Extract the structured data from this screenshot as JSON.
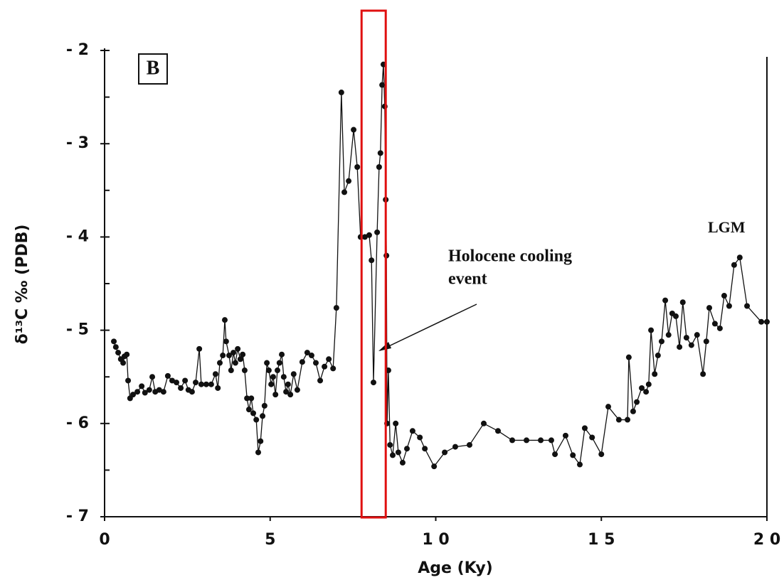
{
  "chart_data": {
    "type": "line",
    "panel_label": "B",
    "x_label": "Age (Ky)",
    "y_label": "δ¹³C ‰ (PDB)",
    "annotations": [
      "Holocene cooling",
      "event",
      "LGM"
    ],
    "highlight_xrange": [
      7.76,
      8.49
    ],
    "highlight_color": "#e01010",
    "xlim": [
      0,
      20
    ],
    "ylim": [
      -7,
      -2
    ],
    "xticks": [
      0,
      5,
      {
        "value": 10,
        "label": "1 0"
      },
      {
        "value": 15,
        "label": "1 5"
      },
      {
        "value": 20,
        "label": "2 0"
      }
    ],
    "yticks": [
      {
        "value": -2,
        "label": "- 2"
      },
      {
        "value": -3,
        "label": "- 3"
      },
      {
        "value": -4,
        "label": "- 4"
      },
      {
        "value": -5,
        "label": "- 5"
      },
      {
        "value": -6,
        "label": "- 6"
      },
      {
        "value": -7,
        "label": "- 7"
      }
    ],
    "y_minor_ticks": [
      -2.5,
      -3.5,
      -4.5,
      -5.5,
      -6.5
    ],
    "grid": false,
    "series": [
      {
        "color": "#111111",
        "x": [
          0.28,
          0.34,
          0.41,
          0.49,
          0.56,
          0.6,
          0.67,
          0.71,
          0.77,
          0.86,
          0.99,
          1.12,
          1.22,
          1.35,
          1.44,
          1.53,
          1.65,
          1.78,
          1.91,
          2.04,
          2.17,
          2.3,
          2.43,
          2.53,
          2.64,
          2.75,
          2.86,
          2.92,
          3.07,
          3.22,
          3.35,
          3.42,
          3.48,
          3.57,
          3.63,
          3.67,
          3.76,
          3.82,
          3.89,
          3.95,
          4.02,
          4.1,
          4.17,
          4.23,
          4.3,
          4.36,
          4.43,
          4.49,
          4.58,
          4.64,
          4.71,
          4.77,
          4.83,
          4.9,
          4.96,
          5.03,
          5.09,
          5.16,
          5.22,
          5.28,
          5.35,
          5.41,
          5.48,
          5.54,
          5.61,
          5.71,
          5.82,
          5.97,
          6.12,
          6.25,
          6.38,
          6.51,
          6.64,
          6.77,
          6.9,
          7.0,
          7.15,
          7.24,
          7.37,
          7.52,
          7.63,
          7.73,
          7.86,
          7.99,
          8.06,
          8.12,
          8.23,
          8.29,
          8.33,
          8.38,
          8.42,
          8.46,
          8.49,
          8.51,
          8.53,
          8.57,
          8.62,
          8.7,
          8.79,
          8.87,
          9.0,
          9.13,
          9.3,
          9.52,
          9.67,
          9.95,
          10.27,
          10.59,
          11.02,
          11.45,
          11.88,
          12.31,
          12.74,
          13.17,
          13.49,
          13.6,
          13.92,
          14.14,
          14.35,
          14.5,
          14.72,
          15.0,
          15.21,
          15.53,
          15.79,
          15.83,
          15.96,
          16.07,
          16.22,
          16.35,
          16.43,
          16.5,
          16.61,
          16.71,
          16.82,
          16.93,
          17.03,
          17.14,
          17.25,
          17.36,
          17.46,
          17.57,
          17.72,
          17.89,
          18.07,
          18.17,
          18.26,
          18.43,
          18.58,
          18.71,
          18.86,
          19.01,
          19.18,
          19.4,
          19.83,
          20.0
        ],
        "values": [
          -5.12,
          -5.18,
          -5.24,
          -5.31,
          -5.35,
          -5.28,
          -5.26,
          -5.54,
          -5.73,
          -5.69,
          -5.66,
          -5.6,
          -5.67,
          -5.64,
          -5.5,
          -5.66,
          -5.64,
          -5.66,
          -5.49,
          -5.54,
          -5.56,
          -5.62,
          -5.54,
          -5.64,
          -5.66,
          -5.56,
          -5.2,
          -5.58,
          -5.58,
          -5.58,
          -5.47,
          -5.62,
          -5.35,
          -5.27,
          -4.89,
          -5.12,
          -5.27,
          -5.43,
          -5.24,
          -5.35,
          -5.2,
          -5.31,
          -5.26,
          -5.43,
          -5.73,
          -5.85,
          -5.73,
          -5.89,
          -5.96,
          -6.31,
          -6.19,
          -5.92,
          -5.81,
          -5.35,
          -5.43,
          -5.58,
          -5.5,
          -5.69,
          -5.43,
          -5.35,
          -5.26,
          -5.5,
          -5.66,
          -5.58,
          -5.69,
          -5.47,
          -5.64,
          -5.34,
          -5.24,
          -5.27,
          -5.35,
          -5.54,
          -5.39,
          -5.31,
          -5.41,
          -4.76,
          -2.45,
          -3.52,
          -3.4,
          -2.85,
          -3.25,
          -4.0,
          -4.0,
          -3.98,
          -4.25,
          -5.56,
          -3.95,
          -3.25,
          -3.1,
          -2.37,
          -2.15,
          -2.6,
          -3.6,
          -4.2,
          -6.0,
          -5.43,
          -6.23,
          -6.34,
          -6.0,
          -6.31,
          -6.42,
          -6.27,
          -6.08,
          -6.15,
          -6.27,
          -6.46,
          -6.31,
          -6.25,
          -6.23,
          -6.0,
          -6.08,
          -6.18,
          -6.18,
          -6.18,
          -6.18,
          -6.33,
          -6.13,
          -6.34,
          -6.44,
          -6.05,
          -6.15,
          -6.33,
          -5.82,
          -5.96,
          -5.96,
          -5.29,
          -5.87,
          -5.77,
          -5.62,
          -5.66,
          -5.58,
          -5.0,
          -5.47,
          -5.27,
          -5.12,
          -4.68,
          -5.05,
          -4.82,
          -4.85,
          -5.18,
          -4.7,
          -5.08,
          -5.16,
          -5.05,
          -5.47,
          -5.12,
          -4.76,
          -4.93,
          -4.98,
          -4.63,
          -4.74,
          -4.3,
          -4.22,
          -4.74,
          -4.91,
          -4.91
        ]
      }
    ]
  }
}
